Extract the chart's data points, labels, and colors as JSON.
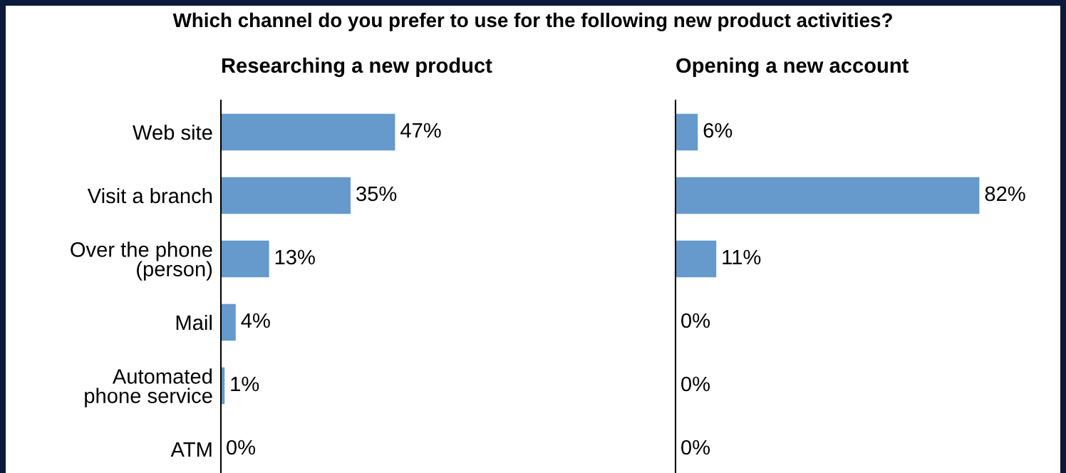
{
  "chart_data": [
    {
      "type": "bar",
      "orientation": "horizontal",
      "title": "Which channel do you prefer to use for the following new product activities?",
      "subtitle": "Researching a new product",
      "categories": [
        "Web site",
        "Visit a branch",
        "Over the phone\n(person)",
        "Mail",
        "Automated\nphone service",
        "ATM"
      ],
      "values": [
        47,
        35,
        13,
        4,
        1,
        0
      ],
      "value_labels": [
        "47%",
        "35%",
        "13%",
        "4%",
        "1%",
        "0%"
      ],
      "color": "#6699cc",
      "tick_labels": "y",
      "grid": false,
      "legend": false
    },
    {
      "type": "bar",
      "orientation": "horizontal",
      "subtitle": "Opening a new account",
      "categories": [
        null,
        null,
        null,
        null,
        null,
        null
      ],
      "values": [
        6,
        82,
        11,
        0,
        0,
        0
      ],
      "value_labels": [
        "6%",
        "82%",
        "11%",
        "0%",
        "0%",
        "0%"
      ],
      "color": "#6699cc",
      "tick_labels": false,
      "grid": false,
      "legend": false
    }
  ]
}
